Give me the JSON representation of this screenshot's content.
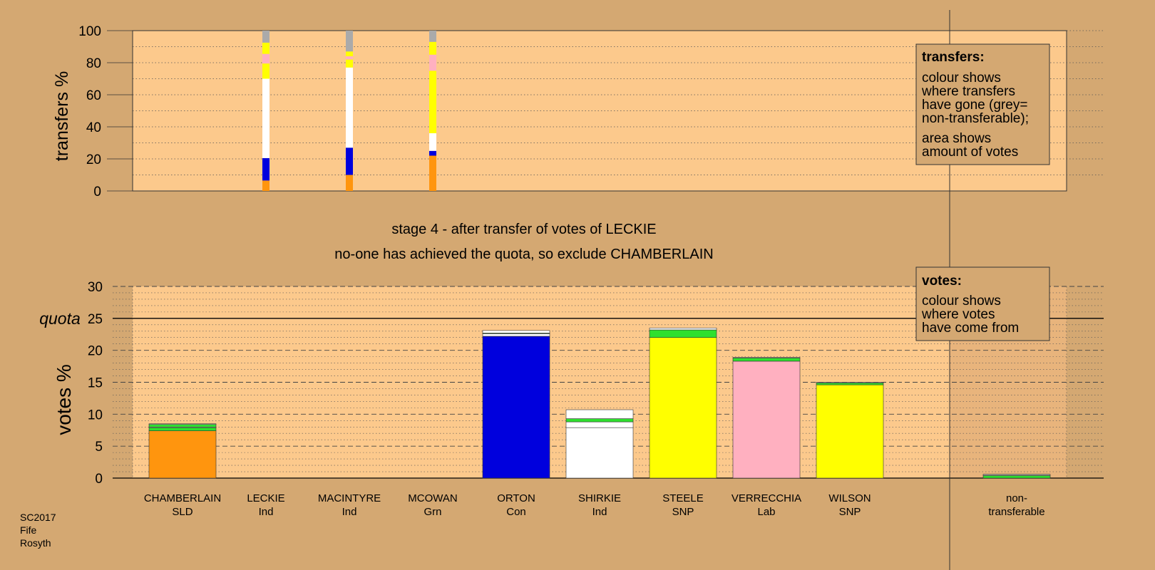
{
  "colors": {
    "background": "#d4a872",
    "plot_area": "#fcc98c",
    "legend_box": "#d4a872",
    "SLD": "#ff950e",
    "Con": "#0000dd",
    "Ind": "#ffffff",
    "SNP": "#ffff00",
    "Lab": "#ffb0c0",
    "Grn": "#2ee02e",
    "nontransferable": "#aaaaaa"
  },
  "texts": {
    "stage_line1": "stage 4 - after transfer of votes of LECKIE",
    "stage_line2": "no-one has achieved the quota, so exclude CHAMBERLAIN",
    "quota_label": "quota",
    "footer": [
      "SC2017",
      "Fife",
      "Rosyth"
    ]
  },
  "legends": {
    "transfers": {
      "title": "transfers:",
      "lines1": [
        "colour shows",
        "where transfers",
        "have gone (grey=",
        "non-transferable);"
      ],
      "lines2": [
        "area shows",
        "amount of votes"
      ]
    },
    "votes": {
      "title": "votes:",
      "lines": [
        "colour shows",
        "where votes",
        "have come from"
      ]
    }
  },
  "chart_data": [
    {
      "type": "bar",
      "stacked": true,
      "ylabel": "transfers %",
      "ylim": [
        0,
        100
      ],
      "yticks": [
        0,
        20,
        40,
        60,
        80,
        100
      ],
      "grid": "dotted",
      "description_of_bars": "thin stacked bars showing where each excluded candidate's transfers went",
      "bars": [
        {
          "candidate": "LECKIE",
          "segments": [
            {
              "party": "SLD",
              "value": 6.5
            },
            {
              "party": "Con",
              "value": 14
            },
            {
              "party": "Ind",
              "value": 49.5
            },
            {
              "party": "SNP",
              "value": 9.5
            },
            {
              "party": "Lab",
              "value": 6
            },
            {
              "party": "SNP",
              "value": 7
            },
            {
              "party": "nontransferable",
              "value": 7.5
            }
          ]
        },
        {
          "candidate": "MACINTYRE",
          "segments": [
            {
              "party": "SLD",
              "value": 10
            },
            {
              "party": "Con",
              "value": 17
            },
            {
              "party": "Ind",
              "value": 50
            },
            {
              "party": "SNP",
              "value": 5
            },
            {
              "party": "Lab",
              "value": 2
            },
            {
              "party": "SNP",
              "value": 3
            },
            {
              "party": "nontransferable",
              "value": 13
            }
          ]
        },
        {
          "candidate": "MCOWAN",
          "segments": [
            {
              "party": "SLD",
              "value": 22
            },
            {
              "party": "Con",
              "value": 3
            },
            {
              "party": "Ind",
              "value": 11
            },
            {
              "party": "SNP",
              "value": 39
            },
            {
              "party": "Lab",
              "value": 10
            },
            {
              "party": "SNP",
              "value": 8
            },
            {
              "party": "nontransferable",
              "value": 7
            }
          ]
        }
      ]
    },
    {
      "type": "bar",
      "stacked": true,
      "ylabel": "votes %",
      "ylim": [
        0,
        30
      ],
      "yticks": [
        0,
        5,
        10,
        15,
        20,
        25,
        30
      ],
      "quota": 25,
      "grid": "dashed",
      "categories": [
        {
          "name": "CHAMBERLAIN",
          "party": "SLD"
        },
        {
          "name": "LECKIE",
          "party": "Ind"
        },
        {
          "name": "MACINTYRE",
          "party": "Ind"
        },
        {
          "name": "MCOWAN",
          "party": "Grn"
        },
        {
          "name": "ORTON",
          "party": "Con"
        },
        {
          "name": "SHIRKIE",
          "party": "Ind"
        },
        {
          "name": "STEELE",
          "party": "SNP"
        },
        {
          "name": "VERRECCHIA",
          "party": "Lab"
        },
        {
          "name": "WILSON",
          "party": "SNP"
        },
        {
          "name": "non-",
          "party": "transferable"
        }
      ],
      "stacks": [
        [
          {
            "party": "SLD",
            "value": 7.4
          },
          {
            "party": "Grn",
            "value": 0.5
          },
          {
            "party": "Ind",
            "value": 0.1
          },
          {
            "party": "Grn",
            "value": 0.4
          },
          {
            "party": "Ind",
            "value": 0.1
          }
        ],
        [],
        [],
        [],
        [
          {
            "party": "Con",
            "value": 22.2
          },
          {
            "party": "Ind",
            "value": 0.4
          },
          {
            "party": "Grn",
            "value": 0.1
          },
          {
            "party": "Ind",
            "value": 0.4
          }
        ],
        [
          {
            "party": "Ind",
            "value": 7.9
          },
          {
            "party": "Ind",
            "value": 0.9
          },
          {
            "party": "Grn",
            "value": 0.5
          },
          {
            "party": "Ind",
            "value": 1.4
          }
        ],
        [
          {
            "party": "SNP",
            "value": 22
          },
          {
            "party": "Grn",
            "value": 1.2
          },
          {
            "party": "Ind",
            "value": 0.3
          }
        ],
        [
          {
            "party": "Lab",
            "value": 18.3
          },
          {
            "party": "Grn",
            "value": 0.5
          },
          {
            "party": "Ind",
            "value": 0.1
          }
        ],
        [
          {
            "party": "SNP",
            "value": 14.6
          },
          {
            "party": "Grn",
            "value": 0.3
          },
          {
            "party": "Ind",
            "value": 0.1
          }
        ],
        [
          {
            "party": "Grn",
            "value": 0.4
          },
          {
            "party": "nontransferable",
            "value": 0.2
          }
        ]
      ]
    }
  ]
}
